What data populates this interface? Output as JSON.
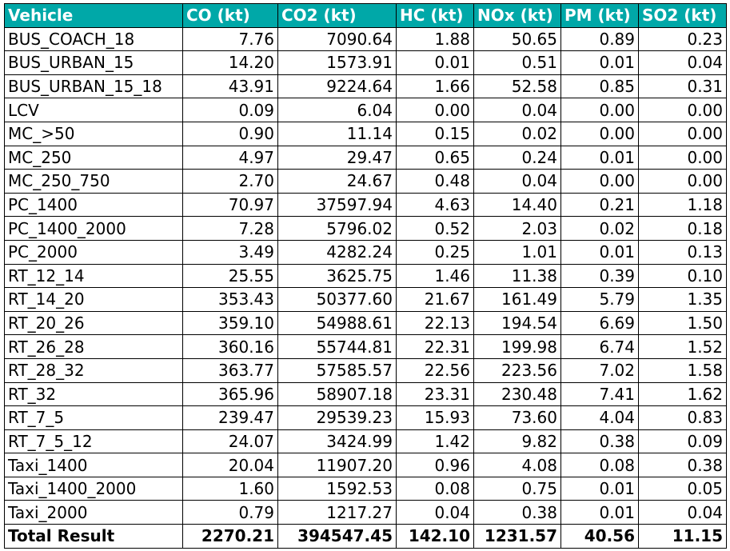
{
  "colors": {
    "header_background": "#00a8a8",
    "header_text": "#ffffff"
  },
  "table": {
    "headers": [
      "Vehicle",
      "CO (kt)",
      "CO2 (kt)",
      "HC (kt)",
      "NOx (kt)",
      "PM (kt)",
      "SO2 (kt)"
    ],
    "rows": [
      [
        "BUS_COACH_18",
        "7.76",
        "7090.64",
        "1.88",
        "50.65",
        "0.89",
        "0.23"
      ],
      [
        "BUS_URBAN_15",
        "14.20",
        "1573.91",
        "0.01",
        "0.51",
        "0.01",
        "0.04"
      ],
      [
        "BUS_URBAN_15_18",
        "43.91",
        "9224.64",
        "1.66",
        "52.58",
        "0.85",
        "0.31"
      ],
      [
        "LCV",
        "0.09",
        "6.04",
        "0.00",
        "0.04",
        "0.00",
        "0.00"
      ],
      [
        "MC_>50",
        "0.90",
        "11.14",
        "0.15",
        "0.02",
        "0.00",
        "0.00"
      ],
      [
        "MC_250",
        "4.97",
        "29.47",
        "0.65",
        "0.24",
        "0.01",
        "0.00"
      ],
      [
        "MC_250_750",
        "2.70",
        "24.67",
        "0.48",
        "0.04",
        "0.00",
        "0.00"
      ],
      [
        "PC_1400",
        "70.97",
        "37597.94",
        "4.63",
        "14.40",
        "0.21",
        "1.18"
      ],
      [
        "PC_1400_2000",
        "7.28",
        "5796.02",
        "0.52",
        "2.03",
        "0.02",
        "0.18"
      ],
      [
        "PC_2000",
        "3.49",
        "4282.24",
        "0.25",
        "1.01",
        "0.01",
        "0.13"
      ],
      [
        "RT_12_14",
        "25.55",
        "3625.75",
        "1.46",
        "11.38",
        "0.39",
        "0.10"
      ],
      [
        "RT_14_20",
        "353.43",
        "50377.60",
        "21.67",
        "161.49",
        "5.79",
        "1.35"
      ],
      [
        "RT_20_26",
        "359.10",
        "54988.61",
        "22.13",
        "194.54",
        "6.69",
        "1.50"
      ],
      [
        "RT_26_28",
        "360.16",
        "55744.81",
        "22.31",
        "199.98",
        "6.74",
        "1.52"
      ],
      [
        "RT_28_32",
        "363.77",
        "57585.57",
        "22.56",
        "223.56",
        "7.02",
        "1.58"
      ],
      [
        "RT_32",
        "365.96",
        "58907.18",
        "23.31",
        "230.48",
        "7.41",
        "1.62"
      ],
      [
        "RT_7_5",
        "239.47",
        "29539.23",
        "15.93",
        "73.60",
        "4.04",
        "0.83"
      ],
      [
        "RT_7_5_12",
        "24.07",
        "3424.99",
        "1.42",
        "9.82",
        "0.38",
        "0.09"
      ],
      [
        "Taxi_1400",
        "20.04",
        "11907.20",
        "0.96",
        "4.08",
        "0.08",
        "0.38"
      ],
      [
        "Taxi_1400_2000",
        "1.60",
        "1592.53",
        "0.08",
        "0.75",
        "0.01",
        "0.05"
      ],
      [
        "Taxi_2000",
        "0.79",
        "1217.27",
        "0.04",
        "0.38",
        "0.01",
        "0.04"
      ]
    ],
    "total": [
      "Total Result",
      "2270.21",
      "394547.45",
      "142.10",
      "1231.57",
      "40.56",
      "11.15"
    ]
  }
}
